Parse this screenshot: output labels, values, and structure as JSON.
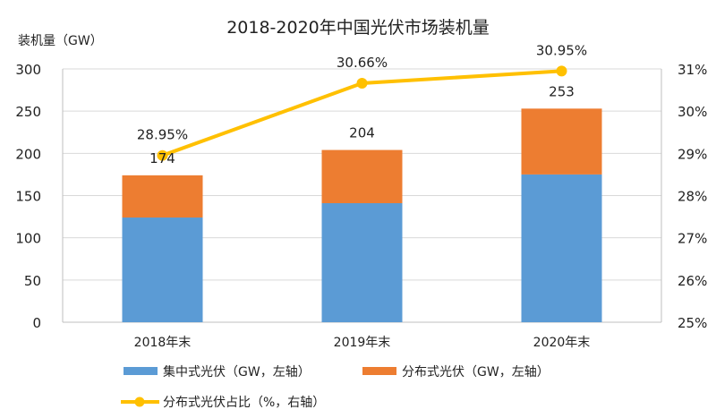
{
  "chart_data": {
    "type": "bar",
    "title": "2018-2020年中国光伏市场装机量",
    "ylabel": "装机量（GW）",
    "categories": [
      "2018年末",
      "2019年末",
      "2020年末"
    ],
    "ylim": [
      0,
      300
    ],
    "yticks": [
      "0",
      "50",
      "100",
      "150",
      "200",
      "250",
      "300"
    ],
    "y2lim": [
      25,
      31
    ],
    "y2ticks": [
      "25%",
      "26%",
      "27%",
      "28%",
      "29%",
      "30%",
      "31%"
    ],
    "stacked": true,
    "grid": true,
    "legend_placement": "bottom",
    "series": [
      {
        "name": "集中式光伏（GW，左轴）",
        "type": "bar",
        "axis": "left",
        "color": "#5B9BD5",
        "values": [
          124,
          141,
          175
        ]
      },
      {
        "name": "分布式光伏（GW，左轴）",
        "type": "bar",
        "axis": "left",
        "color": "#ED7D31",
        "values": [
          50,
          63,
          78
        ]
      },
      {
        "name": "分布式光伏占比（%，右轴）",
        "type": "line",
        "axis": "right",
        "color": "#FFC000",
        "values": [
          28.95,
          30.66,
          30.95
        ],
        "labels": [
          "28.95%",
          "30.66%",
          "30.95%"
        ]
      }
    ],
    "total_labels": [
      "174",
      "204",
      "253"
    ]
  }
}
